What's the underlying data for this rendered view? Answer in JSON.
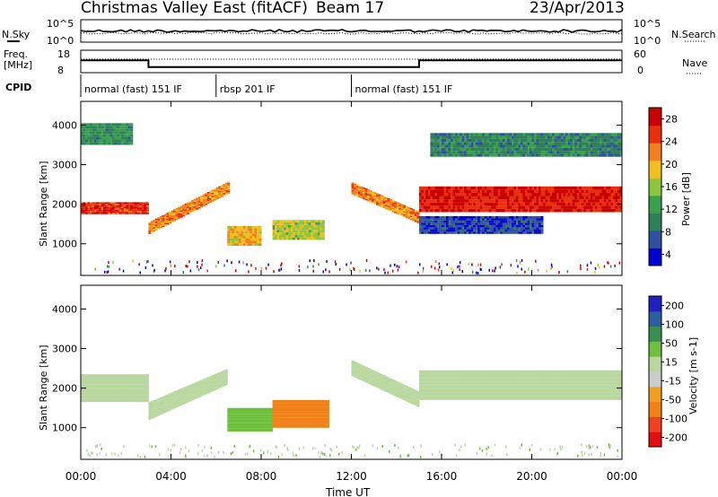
{
  "header": {
    "title": "Christmas Valley East (fitACF)",
    "beam": "Beam 17",
    "date": "23/Apr/2013"
  },
  "sky_panel": {
    "left_label": "N.Sky",
    "right_label": "N.Search",
    "left_ticks": [
      "10^5",
      "10^0"
    ],
    "right_ticks": [
      "10^5",
      "10^0"
    ]
  },
  "freq_panel": {
    "left_label_1": "Freq.",
    "left_label_2": "[MHz]",
    "right_label": "Nave",
    "left_ticks": [
      "18",
      "8"
    ],
    "right_ticks": [
      "60",
      "0"
    ]
  },
  "cpid": {
    "label": "CPID",
    "segments": [
      {
        "start_hour": 0,
        "end_hour": 6,
        "text": "normal (fast) 151 IF"
      },
      {
        "start_hour": 6,
        "end_hour": 12,
        "text": "rbsp 201 IF"
      },
      {
        "start_hour": 12,
        "end_hour": 24,
        "text": "normal (fast) 151 IF"
      }
    ]
  },
  "x_axis": {
    "label": "Time UT",
    "tick_labels": [
      "00:00",
      "04:00",
      "08:00",
      "12:00",
      "16:00",
      "20:00",
      "00:00"
    ]
  },
  "power_panel": {
    "ylabel": "Slant Range [km]",
    "y_ticks": [
      "4000",
      "3000",
      "2000",
      "1000"
    ],
    "colorbar_label": "Power [dB]",
    "colorbar_ticks": [
      "28",
      "24",
      "20",
      "16",
      "12",
      "8",
      "4"
    ]
  },
  "velocity_panel": {
    "ylabel": "Slant Range [km]",
    "y_ticks": [
      "4000",
      "3000",
      "2000",
      "1000"
    ],
    "colorbar_label": "Velocity [m s-1]",
    "colorbar_ticks": [
      "200",
      "100",
      "50",
      "15",
      "-15",
      "-50",
      "-100",
      "-200"
    ]
  },
  "colors": {
    "power_scale": [
      "#0000d0",
      "#2f4fa0",
      "#2e7f5a",
      "#3aa050",
      "#8cc63f",
      "#f0c020",
      "#f08020",
      "#e83010",
      "#c80000"
    ],
    "velocity_scale": [
      "#e01010",
      "#f04020",
      "#f08018",
      "#f0a020",
      "#cccccc",
      "#b8d8a0",
      "#70c040",
      "#3a8f50",
      "#2c5fa0",
      "#2020c0"
    ]
  },
  "chart_data": {
    "type": "heatmap",
    "title": "Christmas Valley East (fitACF)",
    "xlabel": "Time UT",
    "ylabel": "Slant Range [km]",
    "xlim": [
      0,
      24
    ],
    "ylim": [
      200,
      4600
    ],
    "frequency_steps": [
      {
        "start_hour": 0,
        "end_hour": 3,
        "mhz": 13.5
      },
      {
        "start_hour": 3,
        "end_hour": 15,
        "mhz": 10.5
      },
      {
        "start_hour": 15,
        "end_hour": 24,
        "mhz": 13.5
      }
    ],
    "power_bands": [
      {
        "t0": 0.0,
        "t1": 3.0,
        "r0": 1750,
        "r1": 2050,
        "r1_end": 2050,
        "r0_end": 1750,
        "db": 26
      },
      {
        "t0": 3.0,
        "t1": 6.6,
        "r0": 1250,
        "r1": 1550,
        "r0_end": 2300,
        "r1_end": 2600,
        "db": 22
      },
      {
        "t0": 6.5,
        "t1": 8.0,
        "r0": 950,
        "r1": 1450,
        "r0_end": 950,
        "r1_end": 1450,
        "db": 20
      },
      {
        "t0": 8.5,
        "t1": 10.8,
        "r0": 1100,
        "r1": 1600,
        "r0_end": 1100,
        "r1_end": 1600,
        "db": 17
      },
      {
        "t0": 12.0,
        "t1": 15.0,
        "r0": 2250,
        "r1": 2550,
        "r0_end": 1500,
        "r1_end": 1800,
        "db": 22
      },
      {
        "t0": 15.0,
        "t1": 24.0,
        "r0": 1800,
        "r1": 2450,
        "r0_end": 1800,
        "r1_end": 2450,
        "db": 27
      },
      {
        "t0": 0.0,
        "t1": 2.3,
        "r0": 3500,
        "r1": 4050,
        "r0_end": 3500,
        "r1_end": 4050,
        "db": 11
      },
      {
        "t0": 15.5,
        "t1": 24.0,
        "r0": 3200,
        "r1": 3800,
        "r0_end": 3200,
        "r1_end": 3800,
        "db": 10
      },
      {
        "t0": 15.0,
        "t1": 20.5,
        "r0": 1250,
        "r1": 1700,
        "r0_end": 1250,
        "r1_end": 1700,
        "db": 6
      }
    ],
    "velocity_bands": [
      {
        "t0": 0.0,
        "t1": 3.0,
        "r0": 1650,
        "r1": 2350,
        "r0_end": 1650,
        "r1_end": 2350,
        "v": 0
      },
      {
        "t0": 3.0,
        "t1": 6.5,
        "r0": 1200,
        "r1": 1650,
        "r0_end": 2100,
        "r1_end": 2500,
        "v": 0
      },
      {
        "t0": 6.5,
        "t1": 8.5,
        "r0": 900,
        "r1": 1500,
        "r0_end": 900,
        "r1_end": 1500,
        "v": 25
      },
      {
        "t0": 8.5,
        "t1": 11.0,
        "r0": 1000,
        "r1": 1700,
        "r0_end": 1000,
        "r1_end": 1700,
        "v": -60
      },
      {
        "t0": 12.0,
        "t1": 15.0,
        "r0": 2300,
        "r1": 2700,
        "r0_end": 1500,
        "r1_end": 1900,
        "v": 0
      },
      {
        "t0": 15.0,
        "t1": 24.0,
        "r0": 1700,
        "r1": 2450,
        "r0_end": 1700,
        "r1_end": 2450,
        "v": 0
      }
    ]
  }
}
